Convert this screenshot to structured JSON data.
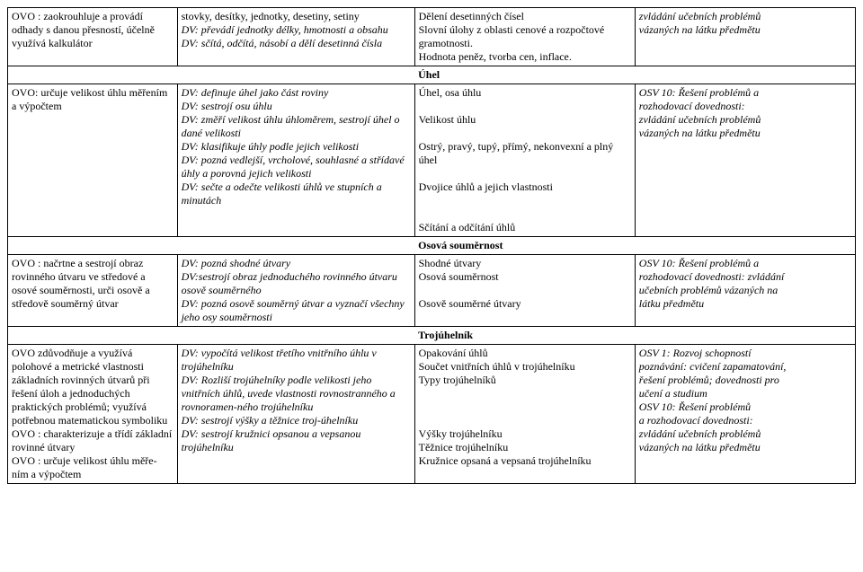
{
  "row1": {
    "c1": "OVO : zaokrouhluje a provádí odhady s danou přesností, účelně využívá kalkulátor",
    "c2": "stovky, desítky, jednotky, desetiny, setiny\nDV: převádí jednotky délky, hmotnosti a obsahu\nDV: sčítá, odčítá, násobí a dělí desetinná čísla",
    "c3": "Dělení desetinných čísel\nSlovní úlohy z oblasti cenové a rozpočtové gramotnosti.\nHodnota peněz, tvorba cen, inflace.",
    "c4": "zvládání učebních problémů vázaných na látku předmětu"
  },
  "sec_uhel": "Úhel",
  "row2": {
    "c1": "OVO: určuje velikost úhlu měřením a výpočtem",
    "c2": "DV: definuje úhel jako část roviny\nDV: sestrojí osu úhlu\nDV: změří velikost úhlu úhloměrem, sestrojí úhel o dané velikosti\nDV: klasifikuje úhly podle jejich velikosti\nDV: pozná vedlejší, vrcholové, souhlasné a střídavé úhly a porovná jejich velikosti\nDV: sečte a odečte velikosti úhlů ve stupních a minutách",
    "c3": "Úhel, osa úhlu\n\nVelikost úhlu\n\nOstrý, pravý, tupý, přímý, nekonvexní a plný úhel\n\nDvojice úhlů a jejich vlastnosti\n\n\nSčítání a odčítání úhlů",
    "c4": "OSV 10: Řešení problémů a rozhodovací dovednosti:\nzvládání učebních problémů vázaných na látku předmětu"
  },
  "sec_osova": "Osová souměrnost",
  "row3": {
    "c1": "OVO : načrtne a sestrojí obraz rovinného útvaru ve středové a osové souměrnosti, urči osově a středově souměrný útvar",
    "c2": "DV: pozná shodné útvary\nDV:sestrojí obraz jednoduchého rovinného útvaru osově souměrného\nDV: pozná osově souměrný útvar a vyznačí všechny jeho osy souměrnosti",
    "c3": "Shodné útvary\nOsová souměrnost\n\nOsově souměrné útvary",
    "c4": "OSV 10: Řešení problémů a rozhodovací dovednosti: zvládání učebních problémů vázaných na látku předmětu"
  },
  "sec_troj": "Trojúhelník",
  "row4": {
    "c1": "OVO zdůvodňuje a využívá polohové a metrické vlastnosti základních rovinných útvarů při řešení úloh a jednoduchých praktických problémů; využívá potřebnou matematickou symboliku\nOVO : charakterizuje a třídí základní rovinné útvary\nOVO : určuje velikost úhlu měře-ním a výpočtem",
    "c2": "DV: vypočítá velikost třetího vnitřního úhlu v trojúhelníku\nDV: Rozliší trojúhelníky podle velikosti jeho vnitřních úhlů, uvede vlastnosti rovnostranného a rovnoramen-ného trojúhelníku\nDV: sestrojí výšky a těžnice troj-úhelníku\nDV: sestrojí kružnici opsanou a vepsanou trojúhelníku",
    "c3": "Opakování úhlů\nSoučet vnitřních úhlů v trojúhelníku\nTypy trojúhelníků\n\n\n\nVýšky trojúhelníku\nTěžnice trojúhelníku\nKružnice opsaná a vepsaná trojúhelníku",
    "c4": "OSV 1: Rozvoj schopností poznávání: cvičení zapamatování, řešení problémů; dovednosti pro učení a studium\nOSV 10: Řešení problémů\na rozhodovací dovednosti:\nzvládání učebních problémů vázaných na látku předmětu"
  }
}
